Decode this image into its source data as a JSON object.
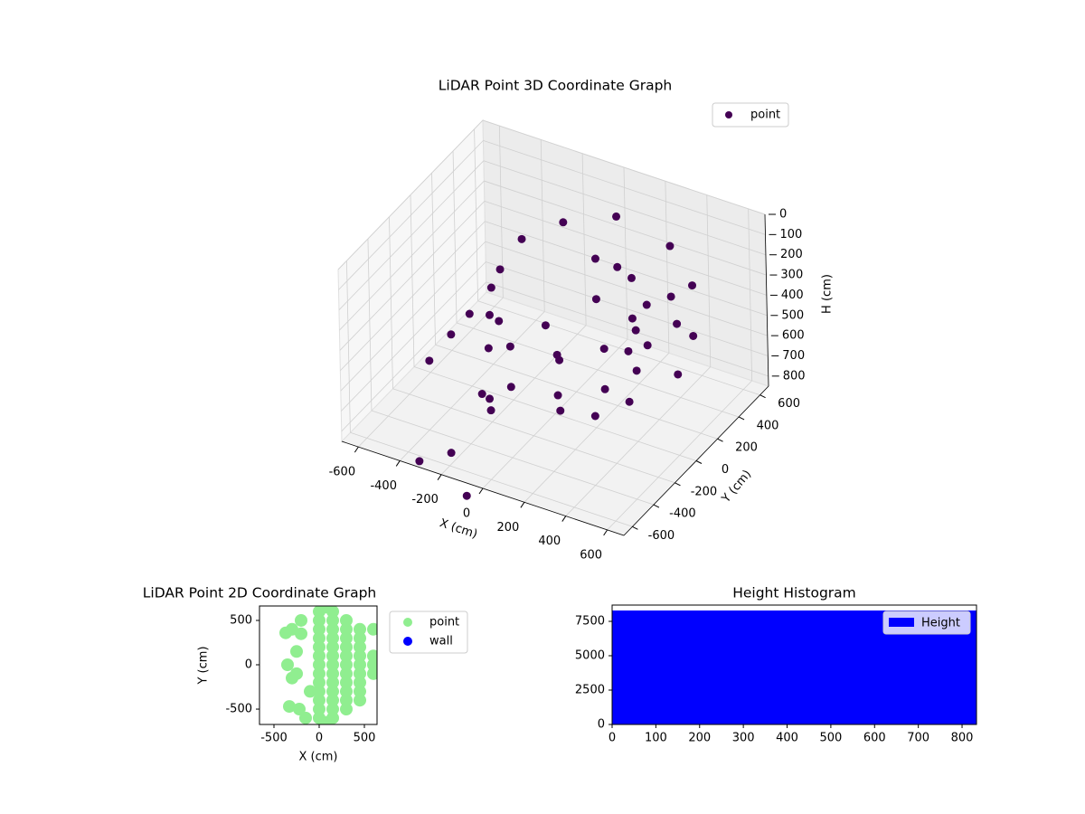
{
  "chart_data": [
    {
      "type": "scatter3d",
      "title": "LiDAR Point 3D Coordinate Graph",
      "xlabel": "X (cm)",
      "ylabel": "Y (cm)",
      "zlabel": "H (cm)",
      "xlim": [
        -680,
        680
      ],
      "ylim": [
        -680,
        680
      ],
      "zlim": [
        0,
        850
      ],
      "z_inverted": true,
      "xticks": [
        -600,
        -400,
        -200,
        0,
        200,
        400,
        600
      ],
      "yticks": [
        -600,
        -400,
        -200,
        0,
        200,
        400,
        600
      ],
      "zticks": [
        0,
        100,
        200,
        300,
        400,
        500,
        600,
        700,
        800
      ],
      "grid": true,
      "legend": "upper right",
      "series": [
        {
          "name": "point",
          "color": "#440154",
          "x": [
            0,
            300,
            520,
            600,
            520,
            300,
            0,
            0,
            300,
            520,
            600,
            520,
            300,
            0,
            0,
            200,
            350,
            400,
            350,
            200,
            0,
            0,
            200,
            350,
            400,
            350,
            200,
            0,
            -200,
            -250,
            -100,
            -150,
            0,
            200,
            -300,
            -350,
            -500,
            -550,
            -300,
            -100,
            -400,
            -350,
            -200,
            300
          ],
          "y": [
            -600,
            -520,
            -300,
            0,
            300,
            520,
            600,
            -600,
            -520,
            -300,
            0,
            300,
            520,
            600,
            -400,
            -350,
            -200,
            0,
            200,
            350,
            400,
            -400,
            -350,
            -200,
            0,
            200,
            350,
            400,
            -100,
            200,
            300,
            -300,
            -500,
            -450,
            -200,
            100,
            -200,
            100,
            -100,
            -400,
            -500,
            -300,
            -450,
            -200
          ],
          "z": [
            200,
            200,
            200,
            200,
            200,
            200,
            200,
            450,
            450,
            450,
            450,
            450,
            450,
            450,
            300,
            300,
            300,
            300,
            300,
            300,
            300,
            500,
            500,
            500,
            500,
            500,
            500,
            500,
            150,
            180,
            100,
            250,
            120,
            100,
            350,
            400,
            650,
            700,
            800,
            650,
            950,
            1000,
            1080,
            650
          ]
        }
      ]
    },
    {
      "type": "scatter",
      "title": "LiDAR Point 2D Coordinate Graph",
      "xlabel": "X (cm)",
      "ylabel": "Y (cm)",
      "xlim": [
        -660,
        640
      ],
      "ylim": [
        -673,
        663
      ],
      "xticks": [
        -500,
        0,
        500
      ],
      "yticks": [
        -500,
        0,
        500
      ],
      "legend": "outside upper right",
      "series": [
        {
          "name": "point",
          "color": "#90ee90",
          "x": [
            0,
            0,
            0,
            0,
            0,
            0,
            0,
            0,
            0,
            0,
            0,
            0,
            0,
            150,
            150,
            150,
            150,
            150,
            150,
            150,
            150,
            150,
            150,
            150,
            150,
            150,
            300,
            300,
            300,
            300,
            300,
            300,
            300,
            300,
            300,
            300,
            300,
            450,
            450,
            450,
            450,
            450,
            450,
            450,
            450,
            450,
            600,
            600,
            600,
            -100,
            -200,
            -300,
            -370,
            -300,
            -250,
            -330,
            -220,
            -350,
            -250,
            -200,
            -150,
            600,
            75,
            75
          ],
          "y": [
            -600,
            -500,
            -400,
            -300,
            -200,
            -100,
            0,
            100,
            200,
            300,
            400,
            500,
            600,
            -600,
            -500,
            -400,
            -300,
            -200,
            -100,
            0,
            100,
            200,
            300,
            400,
            500,
            600,
            -500,
            -400,
            -300,
            -200,
            -100,
            0,
            100,
            200,
            300,
            400,
            500,
            -400,
            -300,
            -200,
            -100,
            0,
            100,
            200,
            300,
            400,
            -100,
            0,
            100,
            -300,
            350,
            400,
            360,
            -150,
            -100,
            -470,
            -500,
            0,
            150,
            500,
            -600,
            400,
            650,
            -650
          ]
        },
        {
          "name": "wall",
          "color": "#0000ff",
          "x": [],
          "y": []
        }
      ]
    },
    {
      "type": "histogram",
      "title": "Height Histogram",
      "xlim": [
        0,
        833
      ],
      "ylim": [
        0,
        8684
      ],
      "xticks": [
        0,
        100,
        200,
        300,
        400,
        500,
        600,
        700,
        800
      ],
      "yticks": [
        0,
        2500,
        5000,
        7500
      ],
      "legend": "upper right",
      "bins": [
        0,
        833
      ],
      "series": [
        {
          "name": "Height",
          "color": "#0000ff",
          "values": [
            8290
          ]
        }
      ]
    }
  ]
}
